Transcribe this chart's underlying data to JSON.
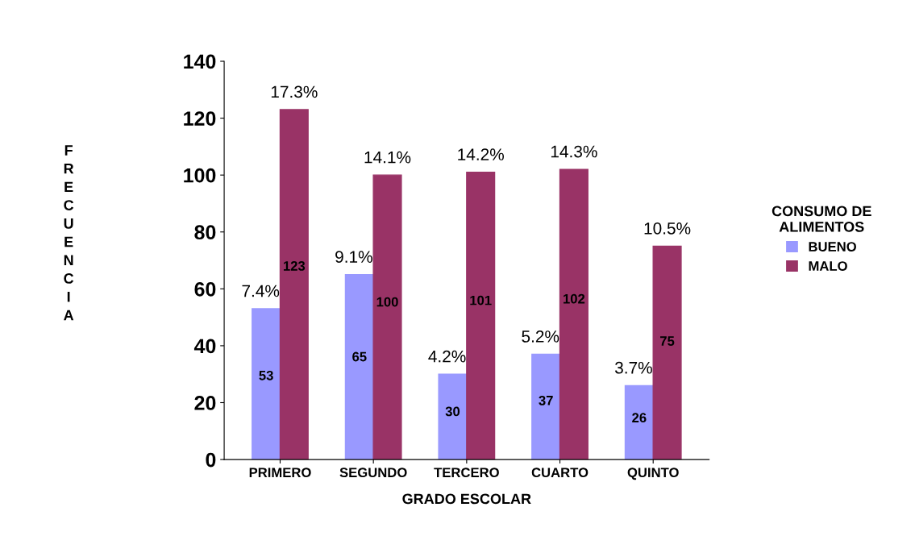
{
  "chart_data": {
    "type": "bar",
    "xlabel": "GRADO ESCOLAR",
    "ylabel": "FRECUENCIA",
    "legend_title": "CONSUMO DE ALIMENTOS",
    "categories": [
      "PRIMERO",
      "SEGUNDO",
      "TERCERO",
      "CUARTO",
      "QUINTO"
    ],
    "series": [
      {
        "name": "BUENO",
        "color": "#9999ff",
        "values": [
          53,
          65,
          30,
          37,
          26
        ],
        "value_labels": [
          "53",
          "65",
          "30",
          "37",
          "26"
        ]
      },
      {
        "name": "MALO",
        "color": "#993366",
        "values": [
          123,
          100,
          101,
          102,
          75
        ],
        "value_labels": [
          "123",
          "100",
          "101",
          "102",
          "75"
        ]
      }
    ],
    "annotations": [
      {
        "text": "7.4%",
        "x": "PRIMERO",
        "y": 53
      },
      {
        "text": "9.1%",
        "x": "SEGUNDO",
        "y": 65
      },
      {
        "text": "4.2%",
        "x": "TERCERO",
        "y": 30
      },
      {
        "text": "5.2%",
        "x": "CUARTO",
        "y": 37
      },
      {
        "text": "3.7%",
        "x": "QUINTO",
        "y": 26
      },
      {
        "text": "17.3%",
        "x": "PRIMERO",
        "y": 123
      },
      {
        "text": "14.1%",
        "x": "SEGUNDO",
        "y": 100
      },
      {
        "text": "14.2%",
        "x": "TERCERO",
        "y": 101
      },
      {
        "text": "14.3%",
        "x": "CUARTO",
        "y": 102
      },
      {
        "text": "10.5%",
        "x": "QUINTO",
        "y": 75
      }
    ],
    "ylim": [
      0,
      140
    ],
    "yticks": [
      0,
      20,
      40,
      60,
      80,
      100,
      120,
      140
    ],
    "grid": false,
    "legend": "right"
  }
}
